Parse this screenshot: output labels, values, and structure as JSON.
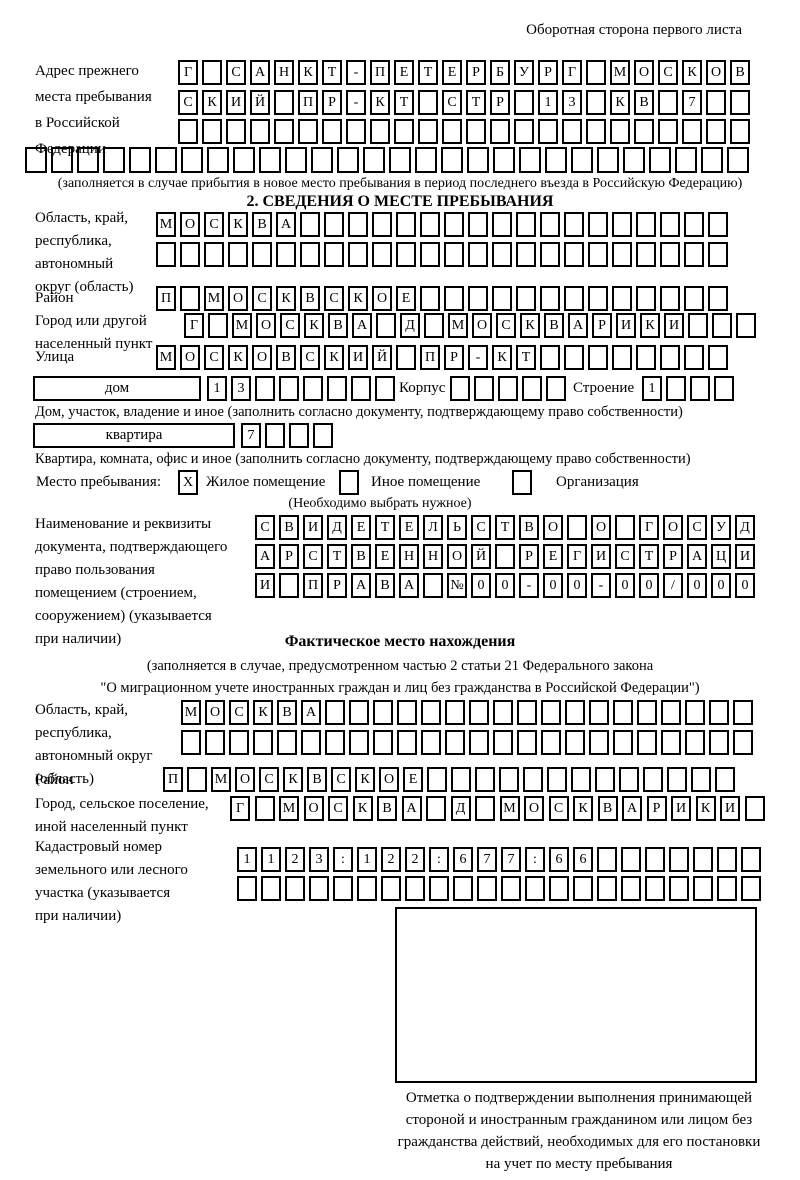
{
  "header_note": "Оборотная сторона первого листа",
  "prev_address": {
    "label_lines": [
      "Адрес прежнего",
      "места пребывания",
      "в Российской",
      "Федерации"
    ],
    "rows": [
      [
        "Г",
        "",
        "С",
        "А",
        "Н",
        "К",
        "Т",
        "-",
        "П",
        "Е",
        "Т",
        "Е",
        "Р",
        "Б",
        "У",
        "Р",
        "Г",
        "",
        "М",
        "О",
        "С",
        "К",
        "О",
        "В"
      ],
      [
        "С",
        "К",
        "И",
        "Й",
        "",
        "П",
        "Р",
        "-",
        "К",
        "Т",
        "",
        "С",
        "Т",
        "Р",
        "",
        "1",
        "3",
        "",
        "К",
        "В",
        "",
        "7",
        "",
        ""
      ],
      [
        "",
        "",
        "",
        "",
        "",
        "",
        "",
        "",
        "",
        "",
        "",
        "",
        "",
        "",
        "",
        "",
        "",
        "",
        "",
        "",
        "",
        "",
        "",
        ""
      ]
    ],
    "full_row": [
      "",
      "",
      "",
      "",
      "",
      "",
      "",
      "",
      "",
      "",
      "",
      "",
      "",
      "",
      "",
      "",
      "",
      "",
      "",
      "",
      "",
      "",
      "",
      "",
      "",
      "",
      "",
      ""
    ],
    "caption": "(заполняется в случае прибытия в новое место пребывания в период последнего въезда в Российскую Федерацию)"
  },
  "section2": {
    "title": "2. СВЕДЕНИЯ О МЕСТЕ ПРЕБЫВАНИЯ",
    "region": {
      "label_lines": [
        "Область, край,",
        "республика,",
        "автономный",
        "округ (область)"
      ],
      "rows": [
        [
          "М",
          "О",
          "С",
          "К",
          "В",
          "А",
          "",
          "",
          "",
          "",
          "",
          "",
          "",
          "",
          "",
          "",
          "",
          "",
          "",
          "",
          "",
          "",
          "",
          ""
        ],
        [
          "",
          "",
          "",
          "",
          "",
          "",
          "",
          "",
          "",
          "",
          "",
          "",
          "",
          "",
          "",
          "",
          "",
          "",
          "",
          "",
          "",
          "",
          "",
          ""
        ]
      ]
    },
    "district": {
      "label": "Район",
      "row": [
        "П",
        "",
        "М",
        "О",
        "С",
        "К",
        "В",
        "С",
        "К",
        "О",
        "Е",
        "",
        "",
        "",
        "",
        "",
        "",
        "",
        "",
        "",
        "",
        "",
        "",
        ""
      ]
    },
    "city": {
      "label_lines": [
        "Город или другой",
        "населенный пункт"
      ],
      "row": [
        "Г",
        "",
        "М",
        "О",
        "С",
        "К",
        "В",
        "А",
        "",
        "Д",
        "",
        "М",
        "О",
        "С",
        "К",
        "В",
        "А",
        "Р",
        "И",
        "К",
        "И",
        "",
        "",
        ""
      ]
    },
    "street": {
      "label": "Улица",
      "row": [
        "М",
        "О",
        "С",
        "К",
        "О",
        "В",
        "С",
        "К",
        "И",
        "Й",
        "",
        "П",
        "Р",
        "-",
        "К",
        "Т",
        "",
        "",
        "",
        "",
        "",
        "",
        "",
        ""
      ]
    },
    "house": {
      "box_label": "дом",
      "cells": [
        "1",
        "3",
        "",
        "",
        "",
        "",
        "",
        ""
      ],
      "korpus_label": "Корпус",
      "korpus_cells": [
        "",
        "",
        "",
        "",
        ""
      ],
      "stroenie_label": "Строение",
      "stroenie_cells": [
        "1",
        "",
        "",
        ""
      ],
      "caption": "Дом, участок, владение и иное (заполнить согласно документу, подтверждающему право собственности)"
    },
    "apartment": {
      "box_label": "квартира",
      "cells": [
        "7",
        "",
        "",
        ""
      ],
      "caption": "Квартира, комната, офис и иное (заполнить согласно документу, подтверждающему право собственности)"
    },
    "stay": {
      "label": "Место пребывания:",
      "options": [
        {
          "label": "Жилое помещение",
          "mark": "X"
        },
        {
          "label": "Иное помещение",
          "mark": ""
        },
        {
          "label": "Организация",
          "mark": ""
        }
      ],
      "note": "(Необходимо выбрать нужное)"
    },
    "document": {
      "label_lines": [
        "Наименование и реквизиты",
        "документа, подтверждающего",
        "право пользования",
        "помещением (строением,",
        "сооружением) (указывается",
        "при наличии)"
      ],
      "rows": [
        [
          "С",
          "В",
          "И",
          "Д",
          "Е",
          "Т",
          "Е",
          "Л",
          "Ь",
          "С",
          "Т",
          "В",
          "О",
          "",
          "О",
          "",
          "Г",
          "О",
          "С",
          "У",
          "Д"
        ],
        [
          "А",
          "Р",
          "С",
          "Т",
          "В",
          "Е",
          "Н",
          "Н",
          "О",
          "Й",
          "",
          "Р",
          "Е",
          "Г",
          "И",
          "С",
          "Т",
          "Р",
          "А",
          "Ц",
          "И"
        ],
        [
          "И",
          "",
          "П",
          "Р",
          "А",
          "В",
          "А",
          "",
          "№",
          "0",
          "0",
          "-",
          "0",
          "0",
          "-",
          "0",
          "0",
          "/",
          "0",
          "0",
          "0"
        ]
      ]
    }
  },
  "actual_location": {
    "title": "Фактическое место нахождения",
    "caption_lines": [
      "(заполняется в случае, предусмотренном частью 2 статьи 21 Федерального закона",
      "\"О миграционном учете иностранных граждан и лиц без гражданства в Российской Федерации\")"
    ],
    "region": {
      "label_lines": [
        "Область, край,",
        "республика,",
        "автономный округ",
        "(область)"
      ],
      "rows": [
        [
          "М",
          "О",
          "С",
          "К",
          "В",
          "А",
          "",
          "",
          "",
          "",
          "",
          "",
          "",
          "",
          "",
          "",
          "",
          "",
          "",
          "",
          "",
          "",
          "",
          ""
        ],
        [
          "",
          "",
          "",
          "",
          "",
          "",
          "",
          "",
          "",
          "",
          "",
          "",
          "",
          "",
          "",
          "",
          "",
          "",
          "",
          "",
          "",
          "",
          "",
          ""
        ]
      ]
    },
    "district": {
      "label": "Район",
      "row": [
        "П",
        "",
        "М",
        "О",
        "С",
        "К",
        "В",
        "С",
        "К",
        "О",
        "Е",
        "",
        "",
        "",
        "",
        "",
        "",
        "",
        "",
        "",
        "",
        "",
        "",
        ""
      ]
    },
    "city": {
      "label_lines": [
        "Город, сельское поселение,",
        "иной населенный пункт"
      ],
      "row": [
        "Г",
        "",
        "М",
        "О",
        "С",
        "К",
        "В",
        "А",
        "",
        "Д",
        "",
        "М",
        "О",
        "С",
        "К",
        "В",
        "А",
        "Р",
        "И",
        "К",
        "И",
        ""
      ]
    },
    "cadastral": {
      "label_lines": [
        "Кадастровый номер",
        "земельного или лесного",
        "участка (указывается",
        "при наличии)"
      ],
      "rows": [
        [
          "1",
          "1",
          "2",
          "3",
          ":",
          "1",
          "2",
          "2",
          ":",
          "6",
          "7",
          "7",
          ":",
          "6",
          "6",
          "",
          "",
          "",
          "",
          "",
          "",
          ""
        ],
        [
          "",
          "",
          "",
          "",
          "",
          "",
          "",
          "",
          "",
          "",
          "",
          "",
          "",
          "",
          "",
          "",
          "",
          "",
          "",
          "",
          "",
          ""
        ]
      ]
    }
  },
  "stamp": {
    "caption_lines": [
      "Отметка о подтверждении выполнения принимающей",
      "стороной и иностранным гражданином или лицом без",
      "гражданства действий, необходимых для его постановки",
      "на учет по месту пребывания"
    ]
  }
}
